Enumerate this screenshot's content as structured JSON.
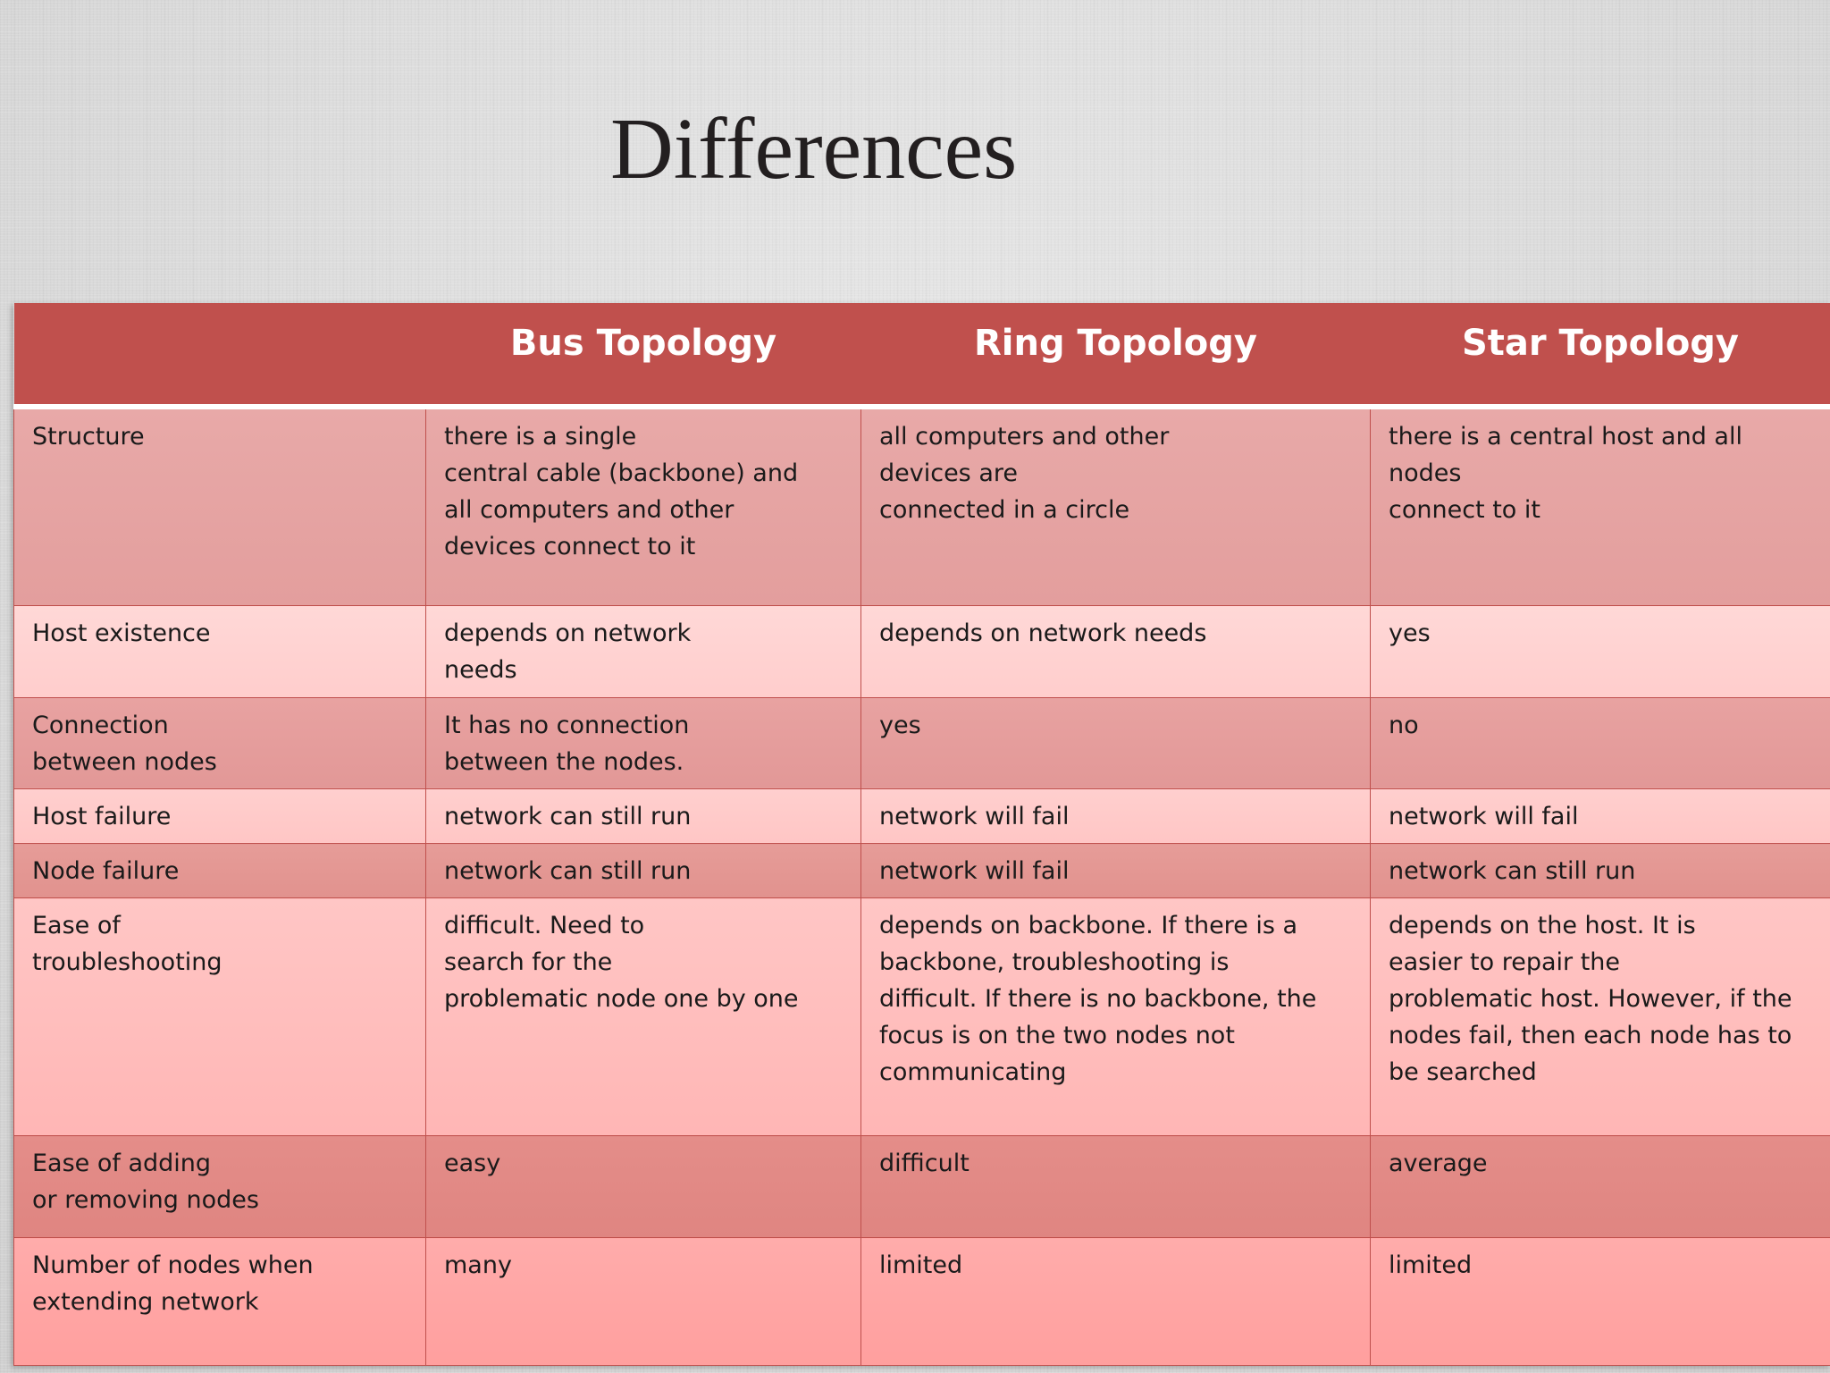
{
  "title": "Differences",
  "table": {
    "headers": [
      "",
      "Bus Topology",
      "Ring Topology",
      "Star Topology"
    ],
    "rows": [
      [
        "Structure",
        "there is a single\ncentral cable (backbone)  and\nall computers and  other\ndevices connect to  it",
        "all computers and other\ndevices are\nconnected in a circle",
        "there is a central host and  all\nnodes\nconnect to it"
      ],
      [
        "Host existence",
        "depends on network\nneeds",
        "depends on network needs",
        "yes"
      ],
      [
        "Connection\nbetween nodes",
        "It has no connection\nbetween the nodes.",
        "yes",
        "no"
      ],
      [
        "Host failure",
        "network can still run",
        "network will fail",
        "network will fail"
      ],
      [
        "Node failure",
        "network can still run",
        "network will fail",
        "network can still run"
      ],
      [
        "Ease of\ntroubleshooting",
        "difficult. Need to\nsearch for the\nproblematic node one by  one",
        "depends on backbone. If there  is a\nbackbone,  troubleshooting is\ndifficult. If there is no  backbone, the\nfocus is on the  two nodes not\ncommunicating",
        "depends on the host. It  is\neasier to repair the\nproblematic host. However,  if the\nnodes fail, then each  node has to\nbe searched"
      ],
      [
        "Ease of adding\nor removing nodes",
        "easy",
        "difficult",
        "average"
      ],
      [
        "Number of nodes  when\nextending  network",
        "many",
        "limited",
        "limited"
      ]
    ]
  },
  "colors": {
    "header_bg": "#c0504d",
    "header_text": "#ffffff",
    "border": "#c0504d",
    "title_text": "#231f20"
  }
}
